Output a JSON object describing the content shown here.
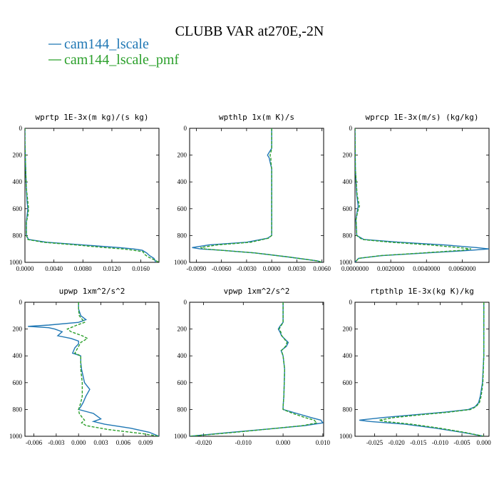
{
  "figure_title": "CLUBB VAR at270E,-2N",
  "legend": [
    {
      "label": "cam144_lscale",
      "color": "#1f77b4",
      "dash": "solid"
    },
    {
      "label": "cam144_lscale_pmf",
      "color": "#2ca02c",
      "dash": "dashed"
    }
  ],
  "chart_data": [
    {
      "type": "line",
      "title": "wprtp  1E-3x(m kg)/(s kg)",
      "xlim": [
        0,
        0.0185
      ],
      "ylim": [
        0,
        1000
      ],
      "y_inverted": true,
      "xticks": [
        0,
        0.004,
        0.008,
        0.012,
        0.016
      ],
      "xtick_labels": [
        "0.0000",
        "0.0040",
        "0.0080",
        "0.0120",
        "0.0160"
      ],
      "yticks": [
        0,
        200,
        400,
        600,
        800,
        1000
      ],
      "series": [
        {
          "name": "cam144_lscale",
          "y": [
            0,
            100,
            300,
            450,
            550,
            600,
            650,
            700,
            800,
            830,
            850,
            870,
            890,
            900,
            910,
            930,
            950,
            970,
            990,
            1000
          ],
          "x": [
            0,
            0,
            0.0001,
            0.0002,
            0.0003,
            0.0004,
            0.0003,
            0.0002,
            0.0002,
            0.0005,
            0.003,
            0.008,
            0.013,
            0.015,
            0.0162,
            0.0168,
            0.0172,
            0.0178,
            0.018,
            0.018
          ]
        },
        {
          "name": "cam144_lscale_pmf",
          "y": [
            0,
            100,
            300,
            450,
            550,
            600,
            650,
            700,
            800,
            830,
            850,
            870,
            890,
            900,
            910,
            920,
            940,
            960,
            980,
            1000
          ],
          "x": [
            0,
            0,
            0.0001,
            0.0002,
            0.0004,
            0.0005,
            0.0004,
            0.0002,
            0.0002,
            0.0004,
            0.0025,
            0.007,
            0.011,
            0.0135,
            0.015,
            0.0163,
            0.0165,
            0.017,
            0.0178,
            0.0185
          ]
        }
      ]
    },
    {
      "type": "line",
      "title": "wpthlp  1x(m K)/s",
      "xlim": [
        -0.0098,
        0.0062
      ],
      "ylim": [
        0,
        1000
      ],
      "y_inverted": true,
      "xticks": [
        -0.009,
        -0.006,
        -0.003,
        0,
        0.003,
        0.006
      ],
      "xtick_labels": [
        "-0.0090",
        "-0.0060",
        "-0.0030",
        "0.0000",
        "0.0030",
        "0.0060"
      ],
      "yticks": [
        0,
        200,
        400,
        600,
        800,
        1000
      ],
      "series": [
        {
          "name": "cam144_lscale",
          "y": [
            0,
            150,
            180,
            200,
            220,
            250,
            300,
            400,
            600,
            800,
            820,
            850,
            870,
            890,
            900,
            910,
            930,
            960,
            990,
            1000
          ],
          "x": [
            0,
            0,
            -0.0003,
            -0.0005,
            -0.0003,
            -0.0002,
            0,
            0,
            0,
            0,
            -0.0005,
            -0.003,
            -0.0075,
            -0.0095,
            -0.0085,
            -0.006,
            -0.002,
            0.002,
            0.0055,
            0.006
          ]
        },
        {
          "name": "cam144_lscale_pmf",
          "y": [
            0,
            150,
            180,
            200,
            220,
            250,
            300,
            400,
            600,
            800,
            820,
            850,
            870,
            890,
            900,
            910,
            930,
            960,
            990,
            1000
          ],
          "x": [
            0,
            0,
            -0.0001,
            -0.0002,
            -0.0001,
            -0.0001,
            0,
            0,
            0,
            0,
            -0.0004,
            -0.0025,
            -0.0065,
            -0.0085,
            -0.008,
            -0.006,
            -0.002,
            0.002,
            0.0055,
            0.006
          ]
        }
      ]
    },
    {
      "type": "line",
      "title": "wprcp  1E-3x(m/s) (kg/kg)",
      "xlim": [
        0,
        0.0075
      ],
      "ylim": [
        0,
        1000
      ],
      "y_inverted": true,
      "xticks": [
        0,
        0.002,
        0.004,
        0.006
      ],
      "xtick_labels": [
        "0.0000000",
        "0.0020000",
        "0.0040000",
        "0.0060000"
      ],
      "yticks": [
        0,
        200,
        400,
        600,
        800,
        1000
      ],
      "series": [
        {
          "name": "cam144_lscale",
          "y": [
            0,
            300,
            500,
            580,
            620,
            680,
            800,
            830,
            850,
            870,
            890,
            900,
            910,
            930,
            950,
            970,
            1000
          ],
          "x": [
            0,
            2e-05,
            0.0001,
            0.00018,
            0.00012,
            5e-05,
            0.0001,
            0.0005,
            0.0025,
            0.005,
            0.0068,
            0.0075,
            0.0065,
            0.004,
            0.0015,
            0.0002,
            0
          ]
        },
        {
          "name": "cam144_lscale_pmf",
          "y": [
            0,
            300,
            500,
            580,
            620,
            680,
            800,
            830,
            850,
            870,
            890,
            900,
            910,
            930,
            950,
            970,
            1000
          ],
          "x": [
            0,
            2e-05,
            0.00012,
            0.00025,
            0.00015,
            6e-05,
            0.0001,
            0.0004,
            0.002,
            0.0042,
            0.0058,
            0.0065,
            0.006,
            0.0038,
            0.0014,
            0.0002,
            0
          ]
        }
      ]
    },
    {
      "type": "line",
      "title": "upwp  1xm^2/s^2",
      "xlim": [
        -0.0072,
        0.0108
      ],
      "ylim": [
        0,
        1000
      ],
      "y_inverted": true,
      "xticks": [
        -0.006,
        -0.003,
        0,
        0.003,
        0.006,
        0.009
      ],
      "xtick_labels": [
        "-0.006",
        "-0.003",
        "0.000",
        "0.003",
        "0.006",
        "0.009"
      ],
      "yticks": [
        0,
        200,
        400,
        600,
        800,
        1000
      ],
      "series": [
        {
          "name": "cam144_lscale",
          "y": [
            0,
            50,
            100,
            130,
            150,
            170,
            180,
            190,
            200,
            220,
            250,
            270,
            290,
            310,
            340,
            380,
            400,
            450,
            500,
            600,
            650,
            700,
            750,
            780,
            800,
            830,
            870,
            890,
            910,
            940,
            970,
            1000
          ],
          "x": [
            0,
            0,
            0.0003,
            0.001,
            0,
            -0.004,
            -0.0068,
            -0.004,
            -0.0032,
            -0.0022,
            -0.0028,
            -0.001,
            0,
            0,
            -0.0005,
            -0.0008,
            0.0003,
            0.0003,
            0.0004,
            0.0008,
            0.0015,
            0.001,
            0.0006,
            0.0003,
            0,
            0.002,
            0.003,
            0.002,
            0.0035,
            0.007,
            0.0095,
            0.0108
          ]
        },
        {
          "name": "cam144_lscale_pmf",
          "y": [
            0,
            50,
            100,
            150,
            170,
            200,
            220,
            250,
            270,
            300,
            350,
            380,
            400,
            500,
            600,
            700,
            750,
            800,
            830,
            860,
            880,
            900,
            920,
            950,
            980,
            1000
          ],
          "x": [
            0,
            0,
            0.0001,
            0.0008,
            -0.0002,
            -0.0015,
            -0.001,
            0.0005,
            0.0012,
            0.0003,
            -0.0002,
            -0.0005,
            0.0003,
            0.0003,
            0.0005,
            0.0005,
            0.0003,
            0,
            0.0001,
            0.0005,
            0.0008,
            0.0004,
            0.001,
            0.004,
            0.0085,
            0.0108
          ]
        }
      ]
    },
    {
      "type": "line",
      "title": "vpwp  1xm^2/s^2",
      "xlim": [
        -0.0235,
        0.0102
      ],
      "ylim": [
        0,
        1000
      ],
      "y_inverted": true,
      "xticks": [
        -0.02,
        -0.01,
        0,
        0.01
      ],
      "xtick_labels": [
        "-0.020",
        "-0.010",
        "0.000",
        "0.010"
      ],
      "yticks": [
        0,
        200,
        400,
        600,
        800,
        1000
      ],
      "series": [
        {
          "name": "cam144_lscale",
          "y": [
            0,
            150,
            180,
            200,
            220,
            250,
            300,
            330,
            360,
            400,
            500,
            700,
            780,
            800,
            830,
            860,
            880,
            900,
            920,
            940,
            970,
            1000
          ],
          "x": [
            0,
            0,
            -0.0008,
            -0.0012,
            -0.0008,
            -0.0004,
            0.0013,
            0.0008,
            -0.0005,
            0,
            0.0004,
            0.0002,
            0,
            0,
            0.0035,
            0.007,
            0.0095,
            0.01,
            0.0055,
            -0.0015,
            -0.013,
            -0.0235
          ]
        },
        {
          "name": "cam144_lscale_pmf",
          "y": [
            0,
            150,
            180,
            200,
            220,
            250,
            300,
            330,
            360,
            400,
            500,
            700,
            780,
            800,
            830,
            860,
            880,
            900,
            920,
            940,
            970,
            1000
          ],
          "x": [
            0,
            0,
            -0.0006,
            -0.001,
            -0.0006,
            -0.0003,
            0.001,
            0.0006,
            -0.0004,
            0,
            0.0004,
            0.0002,
            0,
            0,
            0.0025,
            0.0055,
            0.0078,
            0.0085,
            0.005,
            -0.0015,
            -0.012,
            -0.0235
          ]
        }
      ]
    },
    {
      "type": "line",
      "title": "rtpthlp  1E-3x(kg K)/kg",
      "xlim": [
        -0.0295,
        0.0012
      ],
      "ylim": [
        0,
        1000
      ],
      "y_inverted": true,
      "xticks": [
        -0.025,
        -0.02,
        -0.015,
        -0.01,
        -0.005,
        0
      ],
      "xtick_labels": [
        "-0.025",
        "-0.020",
        "-0.015",
        "-0.010",
        "-0.005",
        "0.000"
      ],
      "yticks": [
        0,
        200,
        400,
        600,
        800,
        1000
      ],
      "series": [
        {
          "name": "cam144_lscale",
          "y": [
            0,
            400,
            600,
            700,
            750,
            780,
            800,
            820,
            840,
            860,
            880,
            890,
            910,
            940,
            970,
            1000
          ],
          "x": [
            0,
            0,
            -0.0003,
            -0.0008,
            -0.0012,
            -0.002,
            -0.0035,
            -0.009,
            -0.016,
            -0.023,
            -0.0285,
            -0.026,
            -0.018,
            -0.011,
            -0.005,
            0
          ]
        },
        {
          "name": "cam144_lscale_pmf",
          "y": [
            0,
            400,
            600,
            700,
            750,
            780,
            800,
            820,
            840,
            860,
            880,
            890,
            910,
            940,
            970,
            1000
          ],
          "x": [
            0,
            0,
            -0.0002,
            -0.0006,
            -0.001,
            -0.0018,
            -0.003,
            -0.008,
            -0.0145,
            -0.0205,
            -0.024,
            -0.0225,
            -0.0165,
            -0.01,
            -0.0045,
            0
          ]
        }
      ]
    }
  ]
}
